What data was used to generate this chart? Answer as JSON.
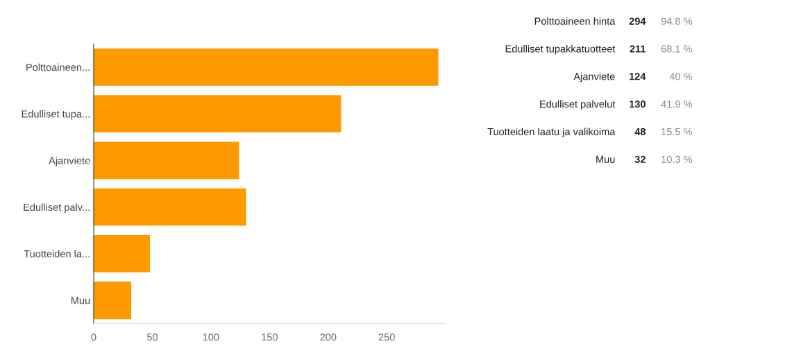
{
  "chart_data": [
    {
      "type": "bar",
      "orientation": "horizontal",
      "categories": [
        "Polttoaineen...",
        "Edulliset tupa...",
        "Ajanviete",
        "Edulliset palv...",
        "Tuotteiden la...",
        "Muu"
      ],
      "values": [
        294,
        211,
        124,
        130,
        48,
        32
      ],
      "color": "#ff9900",
      "xlim": [
        0,
        300
      ],
      "xticks": [
        0,
        50,
        100,
        150,
        200,
        250
      ],
      "grid": false,
      "legend": false
    },
    {
      "type": "other",
      "categories": [
        "Polttoaineen hinta",
        "Edulliset tupakkatuotteet",
        "Ajanviete",
        "Edulliset palvelut",
        "Tuotteiden laatu ja valikoima",
        "Muu"
      ],
      "data_labels": true,
      "values": [
        294,
        211,
        124,
        130,
        48,
        32
      ],
      "annotations": [
        "94.8 %",
        "68.1 %",
        "40 %",
        "41.9 %",
        "15.5 %",
        "10.3 %"
      ]
    }
  ]
}
